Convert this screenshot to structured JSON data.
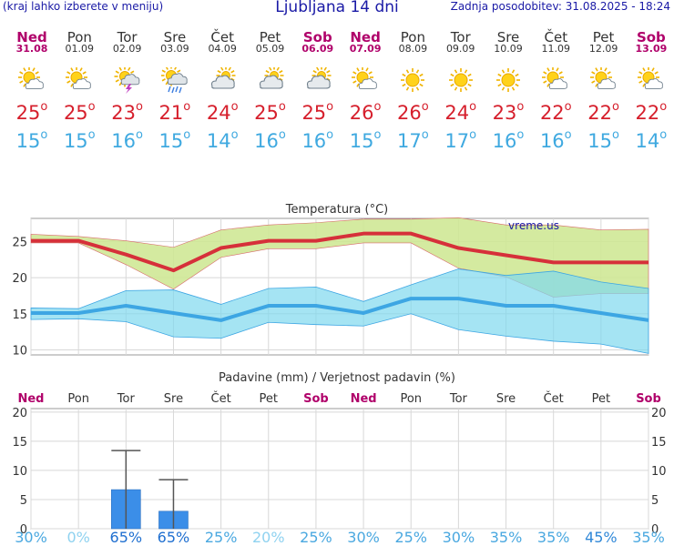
{
  "header": {
    "note": "(kraj lahko izberete v meniju)",
    "title": "Ljubljana 14 dni",
    "updated": "Zadnja posodobitev: 31.08.2025 - 18:24"
  },
  "colors": {
    "weekday": "#333333",
    "weekend": "#b0006a",
    "tmax": "#d61f2c",
    "tmin": "#3fa9e0"
  },
  "days": [
    {
      "name": "Ned",
      "date": "31.08",
      "weekend": true,
      "icon": "sun-cloud-icon",
      "tmax": 25,
      "tmin": 15
    },
    {
      "name": "Pon",
      "date": "01.09",
      "weekend": false,
      "icon": "sun-cloud-icon",
      "tmax": 25,
      "tmin": 15
    },
    {
      "name": "Tor",
      "date": "02.09",
      "weekend": false,
      "icon": "thunderstorm-icon",
      "tmax": 23,
      "tmin": 16
    },
    {
      "name": "Sre",
      "date": "03.09",
      "weekend": false,
      "icon": "rain-shower-icon",
      "tmax": 21,
      "tmin": 15
    },
    {
      "name": "Čet",
      "date": "04.09",
      "weekend": false,
      "icon": "cloudy-icon",
      "tmax": 24,
      "tmin": 14
    },
    {
      "name": "Pet",
      "date": "05.09",
      "weekend": false,
      "icon": "cloudy-icon",
      "tmax": 25,
      "tmin": 16
    },
    {
      "name": "Sob",
      "date": "06.09",
      "weekend": true,
      "icon": "cloudy-icon",
      "tmax": 25,
      "tmin": 16
    },
    {
      "name": "Ned",
      "date": "07.09",
      "weekend": true,
      "icon": "sun-cloud-icon",
      "tmax": 26,
      "tmin": 15
    },
    {
      "name": "Pon",
      "date": "08.09",
      "weekend": false,
      "icon": "sun-icon",
      "tmax": 26,
      "tmin": 17
    },
    {
      "name": "Tor",
      "date": "09.09",
      "weekend": false,
      "icon": "sun-icon",
      "tmax": 24,
      "tmin": 17
    },
    {
      "name": "Sre",
      "date": "10.09",
      "weekend": false,
      "icon": "sun-icon",
      "tmax": 23,
      "tmin": 16
    },
    {
      "name": "Čet",
      "date": "11.09",
      "weekend": false,
      "icon": "sun-cloud-icon",
      "tmax": 22,
      "tmin": 16
    },
    {
      "name": "Pet",
      "date": "12.09",
      "weekend": false,
      "icon": "sun-cloud-icon",
      "tmax": 22,
      "tmin": 15
    },
    {
      "name": "Sob",
      "date": "13.09",
      "weekend": true,
      "icon": "sun-cloud-icon",
      "tmax": 22,
      "tmin": 14
    }
  ],
  "chart_data": [
    {
      "type": "line",
      "title": "Temperatura (°C)",
      "watermark": "vreme.us",
      "ylim": [
        9.3,
        28.2
      ],
      "yticks": [
        10,
        15,
        20,
        25
      ],
      "series": [
        {
          "name": "max",
          "color": "#d6303a",
          "values": [
            25.1,
            25.1,
            23.2,
            21.0,
            24.1,
            25.1,
            25.1,
            26.1,
            26.1,
            24.1,
            23.1,
            22.1,
            22.1,
            22.1
          ]
        },
        {
          "name": "max-upper",
          "values": [
            26.0,
            25.7,
            25.1,
            24.2,
            26.6,
            27.3,
            27.6,
            28.1,
            28.1,
            28.3,
            27.3,
            27.3,
            26.6,
            26.7
          ]
        },
        {
          "name": "max-lower",
          "values": [
            24.8,
            24.8,
            21.8,
            18.4,
            22.8,
            24.0,
            24.0,
            24.8,
            24.8,
            21.3,
            20.1,
            17.3,
            17.8,
            17.8
          ]
        },
        {
          "name": "min",
          "color": "#3da6e3",
          "values": [
            15.1,
            15.1,
            16.1,
            15.1,
            14.1,
            16.1,
            16.1,
            15.1,
            17.1,
            17.1,
            16.1,
            16.1,
            15.1,
            14.1
          ]
        },
        {
          "name": "min-upper",
          "values": [
            15.8,
            15.7,
            18.2,
            18.3,
            16.3,
            18.5,
            18.7,
            16.7,
            19.0,
            21.2,
            20.3,
            20.9,
            19.4,
            18.5
          ]
        },
        {
          "name": "min-lower",
          "values": [
            14.2,
            14.3,
            13.9,
            11.8,
            11.6,
            13.8,
            13.5,
            13.3,
            15.0,
            12.8,
            11.9,
            11.2,
            10.8,
            9.5
          ]
        }
      ]
    },
    {
      "type": "bar",
      "title": "Padavine (mm) / Verjetnost padavin (%)",
      "categories": [
        "Ned",
        "Pon",
        "Tor",
        "Sre",
        "Čet",
        "Pet",
        "Sob",
        "Ned",
        "Pon",
        "Tor",
        "Sre",
        "Čet",
        "Pet",
        "Sob"
      ],
      "weekend": [
        true,
        false,
        false,
        false,
        false,
        false,
        true,
        true,
        false,
        false,
        false,
        false,
        false,
        true
      ],
      "values": [
        0,
        0,
        6.7,
        3.0,
        0,
        0,
        0,
        0,
        0,
        0,
        0,
        0,
        0,
        0
      ],
      "error_high": [
        0,
        0,
        13.4,
        8.4,
        0,
        0,
        0,
        0,
        0,
        0,
        0,
        0,
        0,
        0
      ],
      "ylim": [
        0,
        20.6
      ],
      "yticks": [
        0,
        5,
        10,
        15,
        20
      ],
      "probability": [
        "30%",
        "0%",
        "65%",
        "65%",
        "25%",
        "20%",
        "25%",
        "30%",
        "25%",
        "30%",
        "35%",
        "35%",
        "45%",
        "35%"
      ],
      "probability_colors": [
        "#4aa8e0",
        "#8fd2f0",
        "#1f6fd0",
        "#1f6fd0",
        "#4aa8e0",
        "#8fd2f0",
        "#4aa8e0",
        "#4aa8e0",
        "#4aa8e0",
        "#4aa8e0",
        "#4aa8e0",
        "#4aa8e0",
        "#3088d8",
        "#4aa8e0"
      ]
    }
  ]
}
